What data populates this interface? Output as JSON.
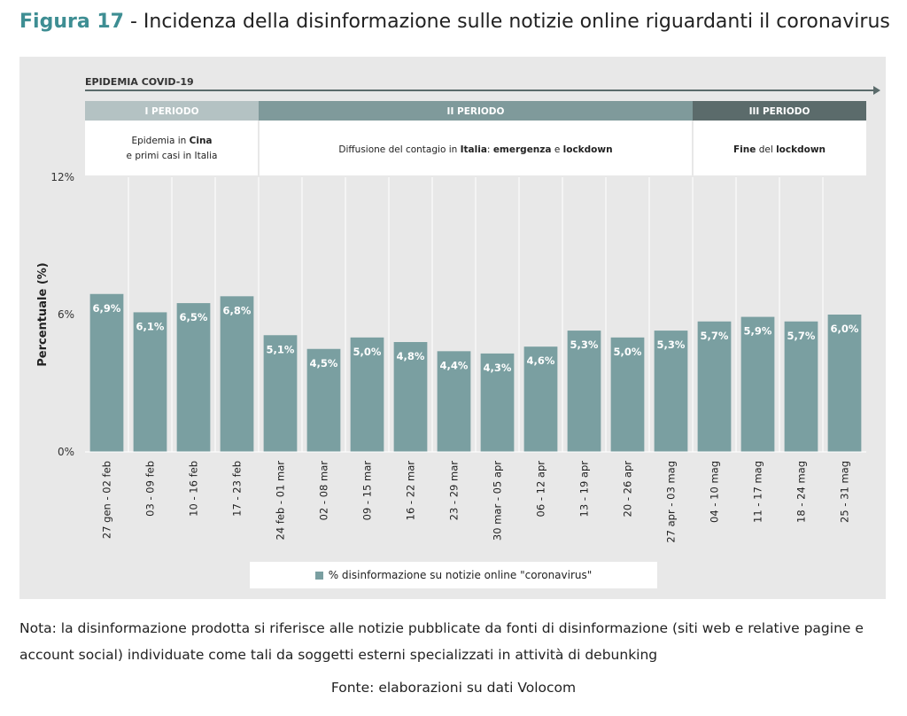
{
  "figure": {
    "number": "Figura 17",
    "separator": " - ",
    "title": "Incidenza della disinformazione sulle notizie online riguardanti il coronavirus"
  },
  "timeline": {
    "label": "EPIDEMIA COVID-19",
    "periods": [
      {
        "label": "I PERIODO",
        "color": "#b4c2c3",
        "desc": [
          [
            {
              "t": "Epidemia in ",
              "b": false
            },
            {
              "t": "Cina",
              "b": true
            }
          ],
          [
            {
              "t": "e primi casi in Italia",
              "b": false
            }
          ]
        ]
      },
      {
        "label": "II PERIODO",
        "color": "#7f9a9b",
        "desc": [
          [
            {
              "t": "Diffusione del contagio in ",
              "b": false
            },
            {
              "t": "Italia",
              "b": true
            },
            {
              "t": ": ",
              "b": false
            },
            {
              "t": "emergenza",
              "b": true
            },
            {
              "t": " e ",
              "b": false
            },
            {
              "t": "lockdown",
              "b": true
            }
          ]
        ]
      },
      {
        "label": "III PERIODO",
        "color": "#5b6b6b",
        "desc": [
          [
            {
              "t": "Fine",
              "b": true
            },
            {
              "t": " del ",
              "b": false
            },
            {
              "t": "lockdown",
              "b": true
            }
          ]
        ]
      }
    ]
  },
  "chart_data": {
    "type": "bar",
    "ylabel": "Percentuale (%)",
    "ylim": [
      0,
      12
    ],
    "yticks": [
      0,
      6,
      12
    ],
    "ytick_labels": [
      "0%",
      "6%",
      "12%"
    ],
    "bar_color": "#7a9fa1",
    "categories": [
      "27 gen - 02 feb",
      "03 - 09 feb",
      "10 - 16 feb",
      "17 - 23 feb",
      "24 feb - 01 mar",
      "02 - 08 mar",
      "09 - 15 mar",
      "16 - 22 mar",
      "23 - 29 mar",
      "30 mar - 05 apr",
      "06 - 12 apr",
      "13 - 19 apr",
      "20 - 26 apr",
      "27 apr - 03 mag",
      "04 - 10 mag",
      "11 - 17 mag",
      "18 - 24 mag",
      "25 - 31 mag"
    ],
    "series": [
      {
        "name": "% disinformazione su notizie online \"coronavirus\"",
        "values": [
          6.9,
          6.1,
          6.5,
          6.8,
          5.1,
          4.5,
          5.0,
          4.8,
          4.4,
          4.3,
          4.6,
          5.3,
          5.0,
          5.3,
          5.7,
          5.9,
          5.7,
          6.0
        ],
        "labels": [
          "6,9%",
          "6,1%",
          "6,5%",
          "6,8%",
          "5,1%",
          "4,5%",
          "5,0%",
          "4,8%",
          "4,4%",
          "4,3%",
          "4,6%",
          "5,3%",
          "5,0%",
          "5,3%",
          "5,7%",
          "5,9%",
          "5,7%",
          "6,0%"
        ]
      }
    ],
    "period_groups": [
      4,
      10,
      4
    ]
  },
  "note": "Nota: la disinformazione prodotta si riferisce alle notizie pubblicate da fonti di disinformazione (siti web e relative pagine e account social) individuate come tali da soggetti esterni specializzati in attività di debunking",
  "source": "Fonte: elaborazioni su dati Volocom"
}
